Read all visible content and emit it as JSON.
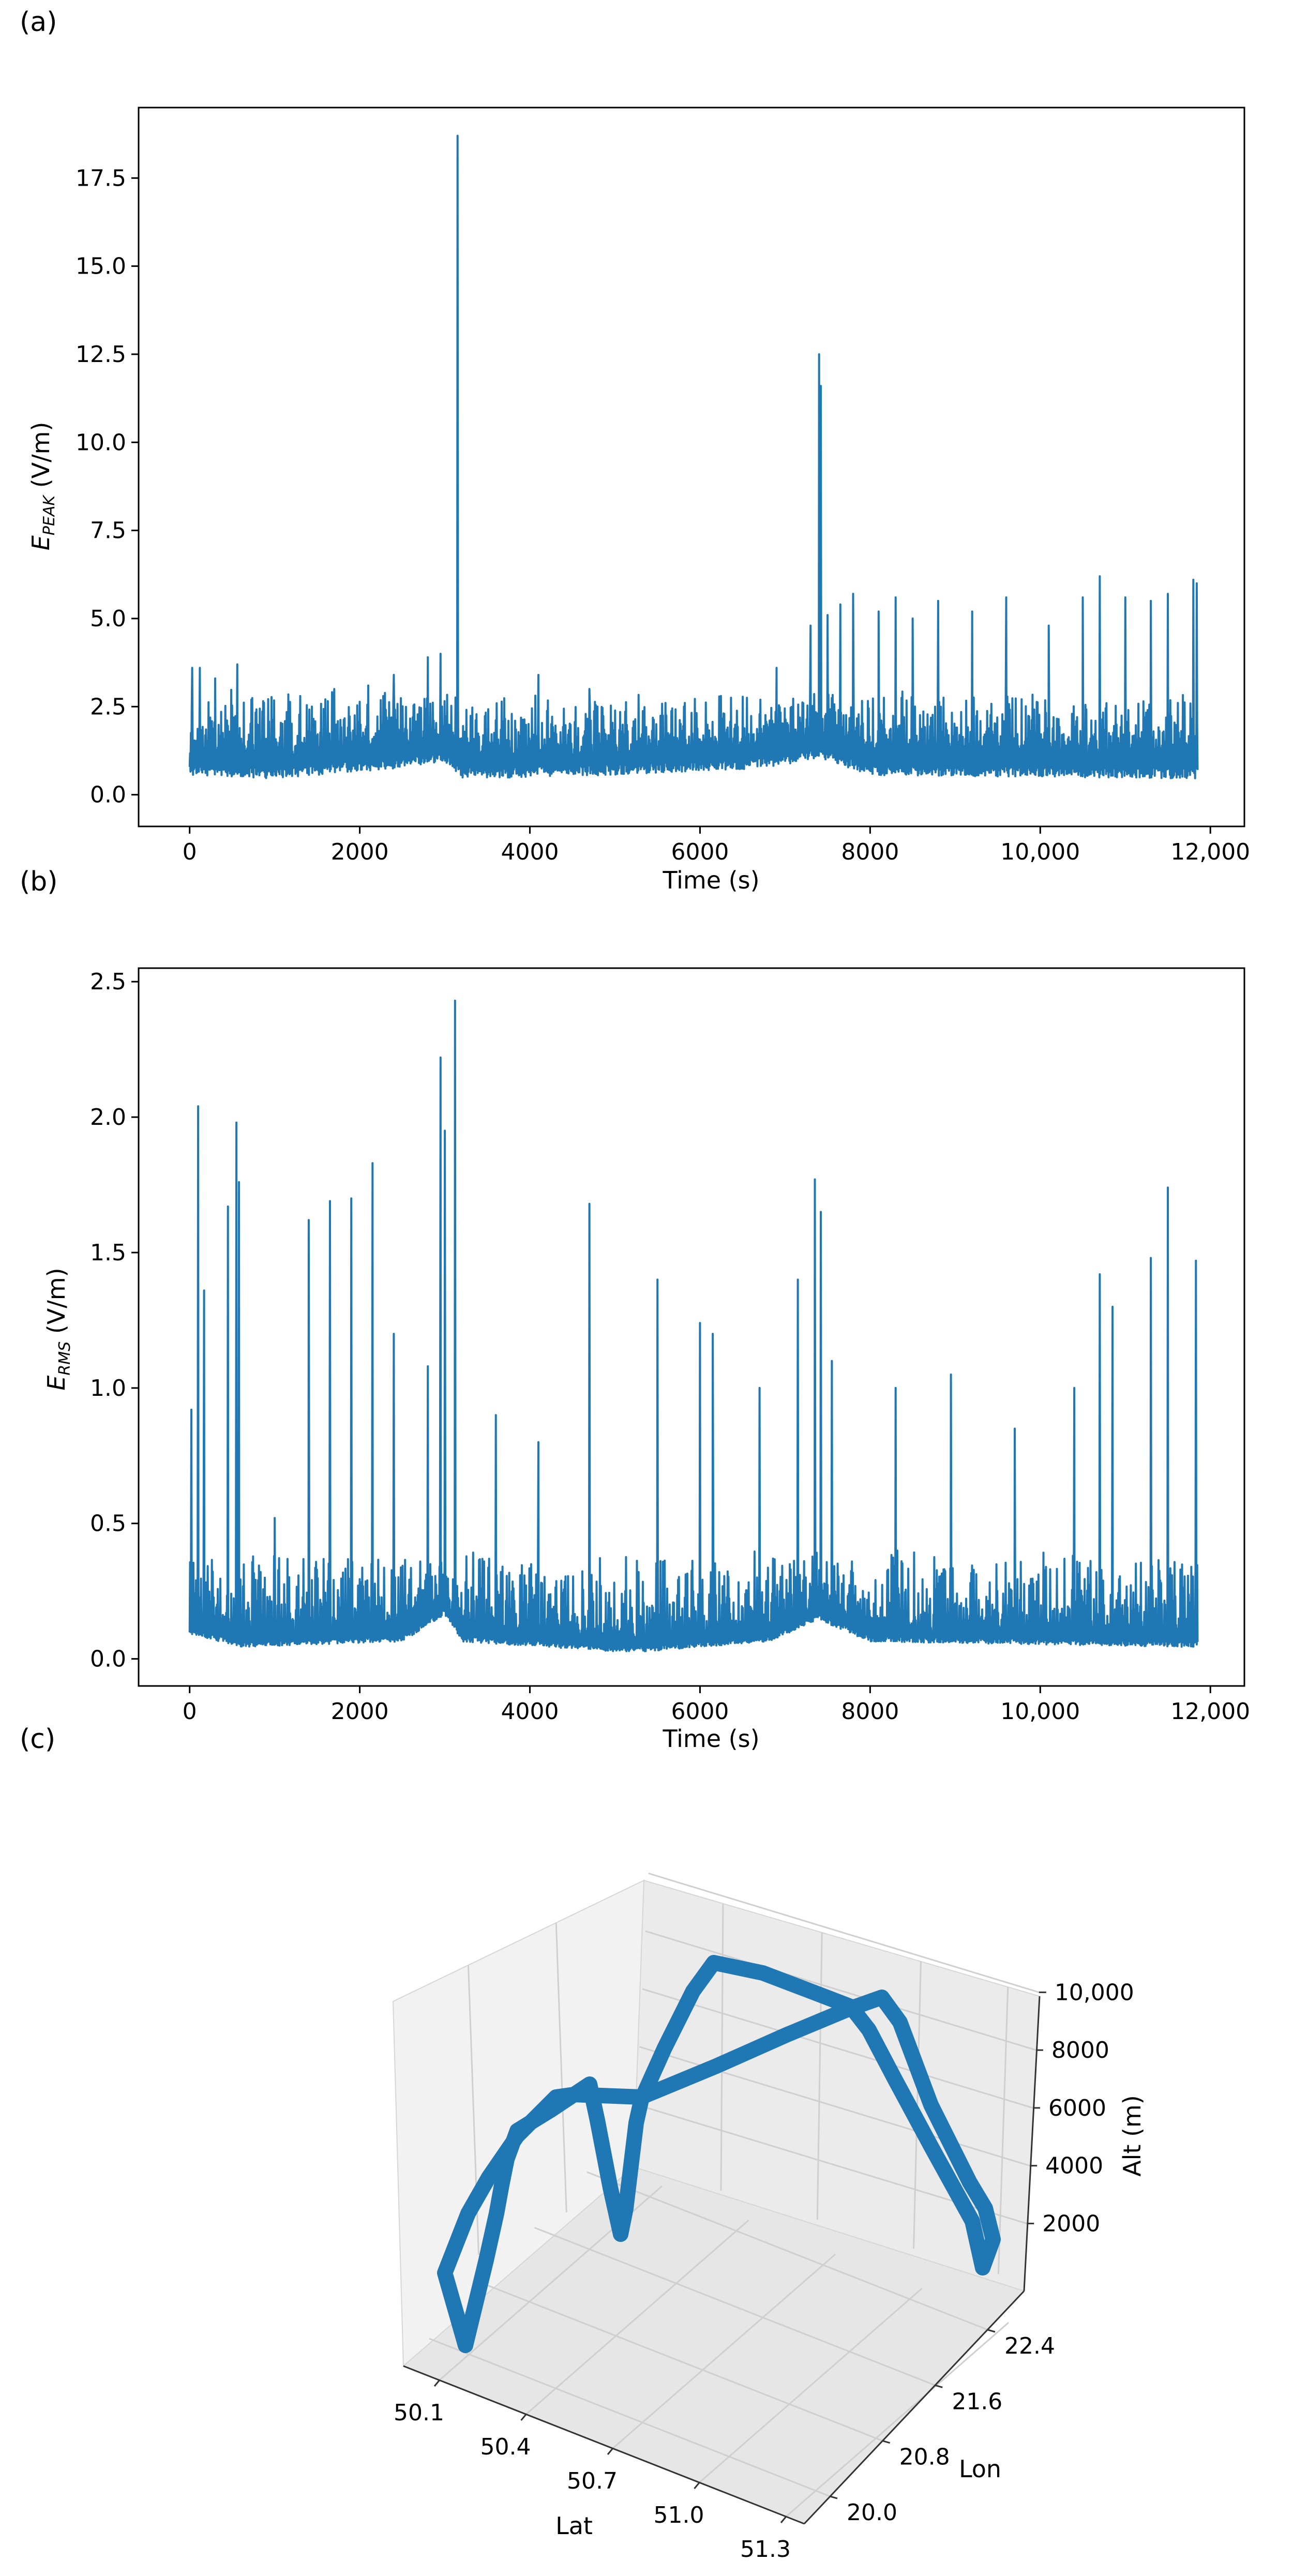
{
  "chart_data": [
    {
      "panel": "(a)",
      "type": "line",
      "xlabel": "Time (s)",
      "ylabel_main": "E",
      "ylabel_sub": "PEAK",
      "ylabel_unit": " (V/m)",
      "xlim": [
        -600,
        12400
      ],
      "ylim": [
        -0.9,
        19.5
      ],
      "xticks": [
        0,
        2000,
        4000,
        6000,
        8000,
        10000,
        12000
      ],
      "xtick_labels": [
        "0",
        "2000",
        "4000",
        "6000",
        "8000",
        "10,000",
        "12,000"
      ],
      "yticks": [
        0.0,
        2.5,
        5.0,
        7.5,
        10.0,
        12.5,
        15.0,
        17.5
      ],
      "ytick_labels": [
        "0.0",
        "2.5",
        "5.0",
        "7.5",
        "10.0",
        "12.5",
        "15.0",
        "17.5"
      ],
      "color": "#1f77b4",
      "series": {
        "t_start": 0,
        "t_end": 11850,
        "baseline": [
          [
            0,
            1.1
          ],
          [
            1000,
            1.0
          ],
          [
            2500,
            1.3
          ],
          [
            3000,
            1.5
          ],
          [
            3200,
            1.0
          ],
          [
            5000,
            1.1
          ],
          [
            6800,
            1.3
          ],
          [
            7400,
            1.6
          ],
          [
            8000,
            1.1
          ],
          [
            11850,
            1.0
          ]
        ],
        "noise_low": 0.45,
        "noise_high": 2.6,
        "spikes": [
          [
            30,
            3.6
          ],
          [
            120,
            3.6
          ],
          [
            300,
            3.3
          ],
          [
            560,
            3.7
          ],
          [
            1300,
            2.8
          ],
          [
            1700,
            3.0
          ],
          [
            2100,
            3.1
          ],
          [
            2400,
            3.4
          ],
          [
            2800,
            3.9
          ],
          [
            2950,
            4.0
          ],
          [
            3150,
            18.7
          ],
          [
            4100,
            3.4
          ],
          [
            4700,
            3.0
          ],
          [
            6900,
            3.6
          ],
          [
            7300,
            4.8
          ],
          [
            7400,
            12.5
          ],
          [
            7420,
            11.6
          ],
          [
            7500,
            5.1
          ],
          [
            7650,
            5.4
          ],
          [
            7800,
            5.7
          ],
          [
            8100,
            5.2
          ],
          [
            8300,
            5.6
          ],
          [
            8500,
            5.0
          ],
          [
            8800,
            5.5
          ],
          [
            9200,
            5.2
          ],
          [
            9600,
            5.6
          ],
          [
            10100,
            4.8
          ],
          [
            10500,
            5.6
          ],
          [
            10700,
            6.2
          ],
          [
            11000,
            5.6
          ],
          [
            11300,
            5.5
          ],
          [
            11500,
            5.7
          ],
          [
            11800,
            6.1
          ],
          [
            11840,
            6.0
          ]
        ]
      }
    },
    {
      "panel": "(b)",
      "type": "line",
      "xlabel": "Time (s)",
      "ylabel_main": "E",
      "ylabel_sub": "RMS",
      "ylabel_unit": " (V/m)",
      "xlim": [
        -600,
        12400
      ],
      "ylim": [
        -0.1,
        2.55
      ],
      "xticks": [
        0,
        2000,
        4000,
        6000,
        8000,
        10000,
        12000
      ],
      "xtick_labels": [
        "0",
        "2000",
        "4000",
        "6000",
        "8000",
        "10,000",
        "12,000"
      ],
      "yticks": [
        0.0,
        0.5,
        1.0,
        1.5,
        2.0,
        2.5
      ],
      "ytick_labels": [
        "0.0",
        "0.5",
        "1.0",
        "1.5",
        "2.0",
        "2.5"
      ],
      "color": "#1f77b4",
      "series": {
        "t_start": 0,
        "t_end": 11850,
        "baseline": [
          [
            0,
            0.13
          ],
          [
            600,
            0.08
          ],
          [
            2500,
            0.1
          ],
          [
            3000,
            0.2
          ],
          [
            3200,
            0.1
          ],
          [
            5200,
            0.06
          ],
          [
            6800,
            0.1
          ],
          [
            7400,
            0.18
          ],
          [
            8000,
            0.1
          ],
          [
            11850,
            0.08
          ]
        ],
        "noise_low": 0.03,
        "noise_high": 0.35,
        "spikes": [
          [
            20,
            0.92
          ],
          [
            100,
            2.04
          ],
          [
            170,
            1.36
          ],
          [
            450,
            1.67
          ],
          [
            550,
            1.98
          ],
          [
            580,
            1.76
          ],
          [
            1000,
            0.52
          ],
          [
            1400,
            1.62
          ],
          [
            1650,
            1.69
          ],
          [
            1900,
            1.7
          ],
          [
            2150,
            1.83
          ],
          [
            2400,
            1.2
          ],
          [
            2800,
            1.08
          ],
          [
            2950,
            2.22
          ],
          [
            3000,
            1.95
          ],
          [
            3120,
            2.43
          ],
          [
            3600,
            0.9
          ],
          [
            4100,
            0.8
          ],
          [
            4700,
            1.68
          ],
          [
            5500,
            1.4
          ],
          [
            6000,
            1.24
          ],
          [
            6150,
            1.2
          ],
          [
            6700,
            1.0
          ],
          [
            7150,
            1.4
          ],
          [
            7350,
            1.77
          ],
          [
            7420,
            1.65
          ],
          [
            7550,
            1.1
          ],
          [
            8300,
            1.0
          ],
          [
            8950,
            1.05
          ],
          [
            9700,
            0.85
          ],
          [
            10400,
            1.0
          ],
          [
            10700,
            1.42
          ],
          [
            10850,
            1.3
          ],
          [
            11300,
            1.48
          ],
          [
            11500,
            1.74
          ],
          [
            11830,
            1.47
          ]
        ]
      }
    },
    {
      "panel": "(c)",
      "type": "line3d",
      "xlabel": "Lat",
      "ylabel": "Lon",
      "zlabel": "Alt (m)",
      "lat_ticks": [
        "50.1",
        "50.4",
        "50.7",
        "51.0",
        "51.3"
      ],
      "lon_ticks": [
        "20.0",
        "20.8",
        "21.6",
        "22.4"
      ],
      "alt_ticks": [
        "2000",
        "4000",
        "6000",
        "8000",
        "10,000"
      ],
      "color": "#1f77b4"
    }
  ]
}
